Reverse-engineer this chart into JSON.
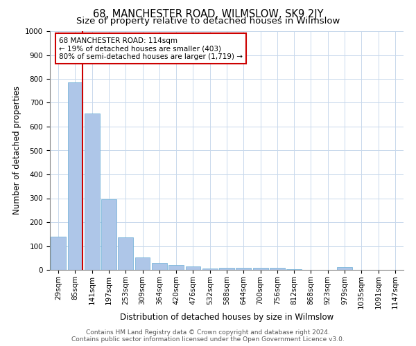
{
  "title": "68, MANCHESTER ROAD, WILMSLOW, SK9 2JY",
  "subtitle": "Size of property relative to detached houses in Wilmslow",
  "xlabel": "Distribution of detached houses by size in Wilmslow",
  "ylabel": "Number of detached properties",
  "footer_line1": "Contains HM Land Registry data © Crown copyright and database right 2024.",
  "footer_line2": "Contains public sector information licensed under the Open Government Licence v3.0.",
  "bar_color": "#aec6e8",
  "bar_edge_color": "#6aaed6",
  "vline_color": "#cc0000",
  "annotation_box_color": "#cc0000",
  "grid_color": "#c8d8ec",
  "categories": [
    "29sqm",
    "85sqm",
    "141sqm",
    "197sqm",
    "253sqm",
    "309sqm",
    "364sqm",
    "420sqm",
    "476sqm",
    "532sqm",
    "588sqm",
    "644sqm",
    "700sqm",
    "756sqm",
    "812sqm",
    "868sqm",
    "923sqm",
    "979sqm",
    "1035sqm",
    "1091sqm",
    "1147sqm"
  ],
  "values": [
    140,
    785,
    655,
    295,
    135,
    52,
    28,
    20,
    15,
    5,
    10,
    10,
    10,
    8,
    3,
    0,
    0,
    13,
    0,
    0,
    0
  ],
  "ylim": [
    0,
    1000
  ],
  "yticks": [
    0,
    100,
    200,
    300,
    400,
    500,
    600,
    700,
    800,
    900,
    1000
  ],
  "vline_x_index": 1,
  "annotation_text": "68 MANCHESTER ROAD: 114sqm\n← 19% of detached houses are smaller (403)\n80% of semi-detached houses are larger (1,719) →",
  "background_color": "#ffffff",
  "title_fontsize": 10.5,
  "subtitle_fontsize": 9.5,
  "axis_label_fontsize": 8.5,
  "tick_fontsize": 7.5,
  "annotation_fontsize": 7.5,
  "footer_fontsize": 6.5
}
